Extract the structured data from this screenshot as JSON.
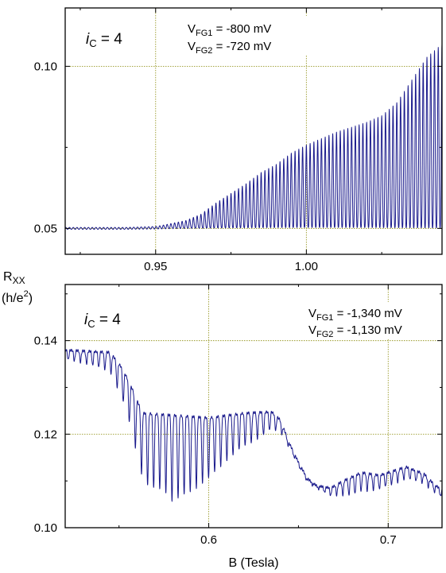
{
  "chart_data": [
    {
      "type": "line",
      "xlabel": "",
      "ylabel": "R_XX (h/e²)",
      "ylabel_main": "R",
      "ylabel_sub": "XX",
      "ylabel_unit": "(h/e",
      "ylabel_unit_sup": "2",
      "ylabel_unit_end": ")",
      "xlim": [
        0.92,
        1.045
      ],
      "ylim": [
        0.042,
        0.118
      ],
      "xticks": [
        0.95,
        1.0
      ],
      "xtick_labels": [
        "0.95",
        "1.00"
      ],
      "yticks": [
        0.05,
        0.1
      ],
      "ytick_labels": [
        "0.05",
        "0.10"
      ],
      "grid": true,
      "annotations": {
        "filling": {
          "italic": "i",
          "sub": "C",
          "rest": " = 4"
        },
        "gate1": {
          "main": "V",
          "sub": "FG1",
          "rest": " = -800 mV"
        },
        "gate2": {
          "main": "V",
          "sub": "FG2",
          "rest": " = -720 mV"
        }
      },
      "series": [
        {
          "color": "#1a1a8c",
          "baseline": 0.05,
          "osc_period": 0.00125,
          "envelope": [
            [
              0.92,
              0.0
            ],
            [
              0.94,
              0.0
            ],
            [
              0.95,
              0.0005
            ],
            [
              0.96,
              0.0025
            ],
            [
              0.965,
              0.0045
            ],
            [
              0.97,
              0.008
            ],
            [
              0.975,
              0.011
            ],
            [
              0.98,
              0.014
            ],
            [
              0.985,
              0.0175
            ],
            [
              0.99,
              0.02
            ],
            [
              0.995,
              0.0235
            ],
            [
              1.0,
              0.026
            ],
            [
              1.005,
              0.028
            ],
            [
              1.01,
              0.03
            ],
            [
              1.015,
              0.0315
            ],
            [
              1.02,
              0.033
            ],
            [
              1.025,
              0.035
            ],
            [
              1.03,
              0.039
            ],
            [
              1.035,
              0.046
            ],
            [
              1.04,
              0.053
            ],
            [
              1.045,
              0.057
            ]
          ]
        }
      ]
    },
    {
      "type": "line",
      "xlabel": "B (Tesla)",
      "ylabel": "",
      "xlim": [
        0.52,
        0.73
      ],
      "ylim": [
        0.1,
        0.152
      ],
      "xticks": [
        0.6,
        0.7
      ],
      "xtick_labels": [
        "0.6",
        "0.7"
      ],
      "yticks": [
        0.1,
        0.12,
        0.14
      ],
      "ytick_labels": [
        "0.10",
        "0.12",
        "0.14"
      ],
      "grid": true,
      "annotations": {
        "filling": {
          "italic": "i",
          "sub": "C",
          "rest": " = 4"
        },
        "gate1": {
          "main": "V",
          "sub": "FG1",
          "rest": " = -1,340 mV"
        },
        "gate2": {
          "main": "V",
          "sub": "FG2",
          "rest": " = -1,130 mV"
        }
      },
      "series": [
        {
          "color": "#1a1a8c",
          "osc_period": 0.0034,
          "upper": [
            [
              0.52,
              0.138
            ],
            [
              0.545,
              0.1375
            ],
            [
              0.552,
              0.134
            ],
            [
              0.557,
              0.13
            ],
            [
              0.563,
              0.1245
            ],
            [
              0.6,
              0.1235
            ],
            [
              0.62,
              0.1245
            ],
            [
              0.635,
              0.1248
            ],
            [
              0.64,
              0.123
            ],
            [
              0.645,
              0.118
            ],
            [
              0.65,
              0.114
            ],
            [
              0.655,
              0.1105
            ],
            [
              0.66,
              0.109
            ],
            [
              0.668,
              0.1085
            ],
            [
              0.675,
              0.11
            ],
            [
              0.685,
              0.1118
            ],
            [
              0.69,
              0.1115
            ],
            [
              0.695,
              0.1112
            ],
            [
              0.71,
              0.113
            ],
            [
              0.72,
              0.1115
            ],
            [
              0.725,
              0.1095
            ],
            [
              0.73,
              0.108
            ]
          ],
          "depth": [
            [
              0.52,
              0.002
            ],
            [
              0.53,
              0.0025
            ],
            [
              0.545,
              0.004
            ],
            [
              0.555,
              0.008
            ],
            [
              0.562,
              0.013
            ],
            [
              0.567,
              0.016
            ],
            [
              0.575,
              0.016
            ],
            [
              0.58,
              0.0185
            ],
            [
              0.59,
              0.016
            ],
            [
              0.6,
              0.013
            ],
            [
              0.61,
              0.0095
            ],
            [
              0.62,
              0.007
            ],
            [
              0.63,
              0.005
            ],
            [
              0.638,
              0.003
            ],
            [
              0.645,
              0.001
            ],
            [
              0.66,
              0.0005
            ],
            [
              0.67,
              0.002
            ],
            [
              0.68,
              0.004
            ],
            [
              0.685,
              0.004
            ],
            [
              0.695,
              0.003
            ],
            [
              0.71,
              0.0025
            ],
            [
              0.72,
              0.002
            ],
            [
              0.73,
              0.0015
            ]
          ]
        }
      ]
    }
  ]
}
